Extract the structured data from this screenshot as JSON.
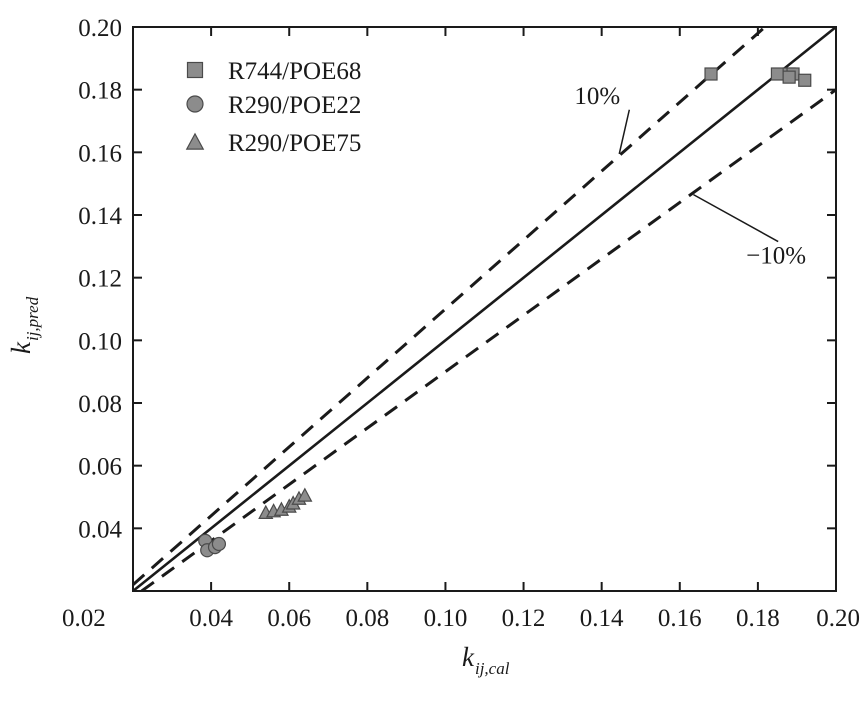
{
  "chart_data": {
    "type": "scatter",
    "title": "",
    "xlabel": {
      "main": "k",
      "sub": "ij,cal"
    },
    "ylabel": {
      "main": "k",
      "sub": "ij,pred"
    },
    "xlim": [
      0.02,
      0.2
    ],
    "ylim": [
      0.02,
      0.2
    ],
    "x_ticks": [
      "0.02",
      "0.04",
      "0.06",
      "0.08",
      "0.10",
      "0.12",
      "0.14",
      "0.16",
      "0.18",
      "0.20"
    ],
    "y_ticks": [
      "0.04",
      "0.06",
      "0.08",
      "0.10",
      "0.12",
      "0.14",
      "0.16",
      "0.18",
      "0.20"
    ],
    "grid": false,
    "legend_position": "top-left",
    "series": [
      {
        "name": "R744/POE68",
        "marker": "square",
        "color": "#8c8c8c",
        "points": [
          [
            0.168,
            0.185
          ],
          [
            0.185,
            0.185
          ],
          [
            0.188,
            0.185
          ],
          [
            0.189,
            0.185
          ],
          [
            0.188,
            0.184
          ],
          [
            0.192,
            0.183
          ]
        ]
      },
      {
        "name": "R290/POE22",
        "marker": "circle",
        "color": "#8c8c8c",
        "points": [
          [
            0.0385,
            0.036
          ],
          [
            0.039,
            0.033
          ],
          [
            0.041,
            0.034
          ],
          [
            0.042,
            0.035
          ]
        ]
      },
      {
        "name": "R290/POE75",
        "marker": "triangle",
        "color": "#8c8c8c",
        "points": [
          [
            0.054,
            0.045
          ],
          [
            0.056,
            0.0455
          ],
          [
            0.058,
            0.046
          ],
          [
            0.06,
            0.047
          ],
          [
            0.061,
            0.048
          ],
          [
            0.0625,
            0.0495
          ],
          [
            0.064,
            0.0505
          ]
        ]
      }
    ],
    "reference_lines": [
      {
        "slope": 1.0,
        "style": "solid"
      },
      {
        "slope": 1.1,
        "style": "dashed"
      },
      {
        "slope": 0.9,
        "style": "dashed"
      }
    ],
    "annotations": [
      {
        "text": "10%",
        "line_slope": 1.1,
        "label_at": [
          0.133,
          0.1755
        ],
        "pointer_to": [
          0.1445,
          0.1595
        ]
      },
      {
        "text": "−10%",
        "line_slope": 0.9,
        "label_at": [
          0.177,
          0.1245
        ],
        "pointer_to": [
          0.1635,
          0.1465
        ]
      }
    ]
  }
}
